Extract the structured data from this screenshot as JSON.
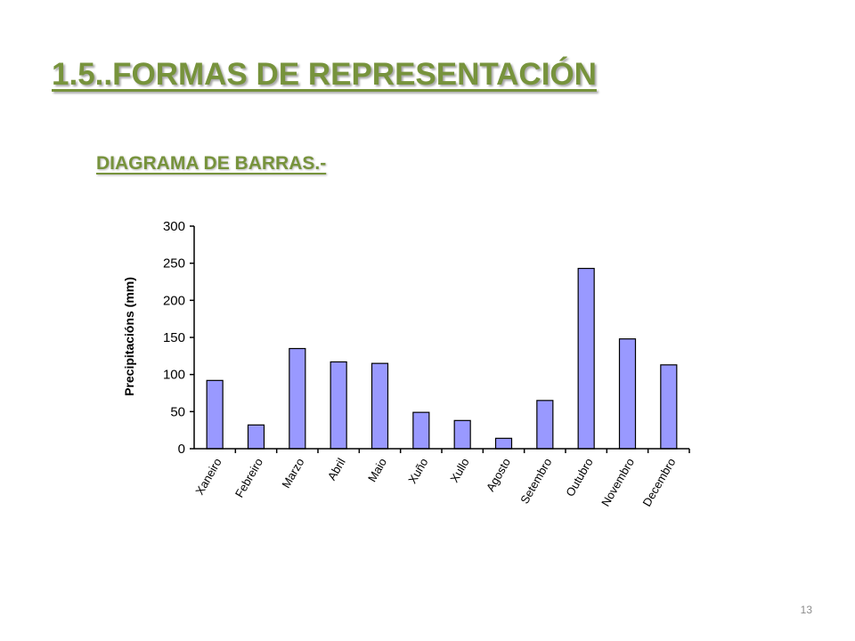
{
  "slide": {
    "title": "1.5..FORMAS DE REPRESENTACIÓN",
    "subtitle": "DIAGRAMA DE BARRAS.-",
    "page_number": "13"
  },
  "colors": {
    "heading": "#77933c",
    "bar_fill": "#9999ff",
    "bar_stroke": "#000000"
  },
  "chart_data": {
    "type": "bar",
    "title": "",
    "xlabel": "",
    "ylabel": "Precipitacións (mm)",
    "ylim": [
      0,
      300
    ],
    "yticks": [
      "0",
      "50",
      "100",
      "150",
      "200",
      "250",
      "300"
    ],
    "grid": false,
    "legend": "none",
    "categories": [
      "Xaneiro",
      "Febreiro",
      "Marzo",
      "Abril",
      "Maio",
      "Xuño",
      "Xullo",
      "Agosto",
      "Setembro",
      "Outubro",
      "Novembro",
      "Decembro"
    ],
    "values": [
      92,
      32,
      135,
      117,
      115,
      49,
      38,
      14,
      65,
      243,
      148,
      113
    ]
  }
}
